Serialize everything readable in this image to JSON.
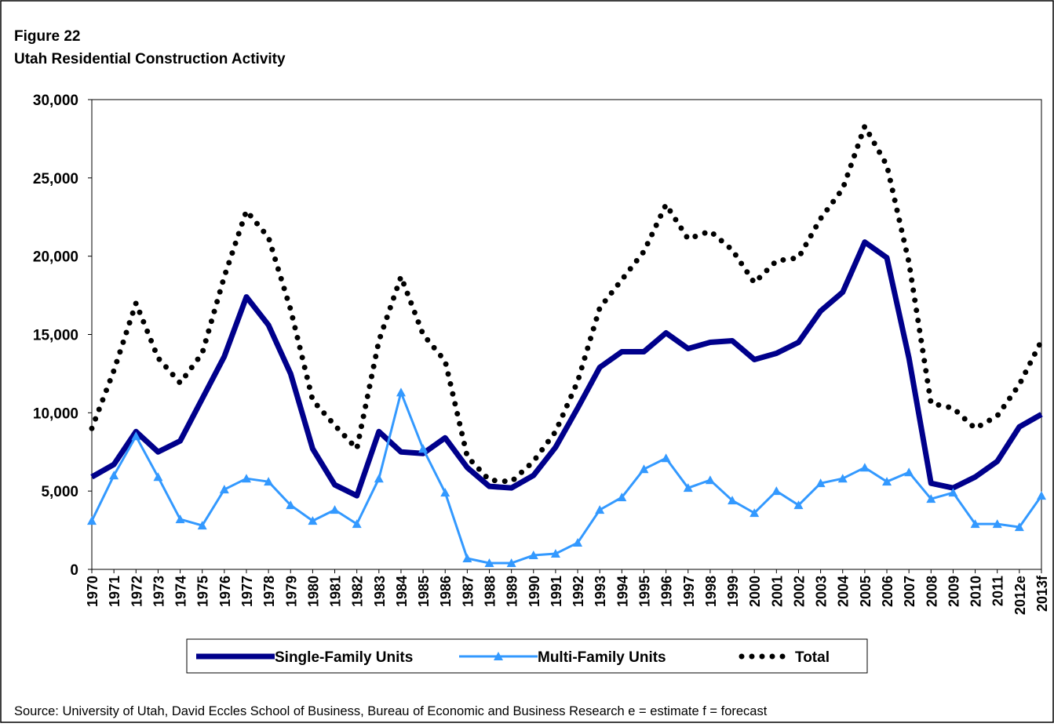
{
  "chart_data": {
    "type": "line",
    "title": "Figure 22",
    "subtitle": "Utah Residential Construction Activity",
    "source": "Source: University of Utah, David Eccles School of Business, Bureau of Economic and Business Research   e = estimate  f = forecast",
    "categories": [
      "1970",
      "1971",
      "1972",
      "1973",
      "1974",
      "1975",
      "1976",
      "1977",
      "1978",
      "1979",
      "1980",
      "1981",
      "1982",
      "1983",
      "1984",
      "1985",
      "1986",
      "1987",
      "1988",
      "1989",
      "1990",
      "1991",
      "1992",
      "1993",
      "1994",
      "1995",
      "1996",
      "1997",
      "1998",
      "1999",
      "2000",
      "2001",
      "2002",
      "2003",
      "2004",
      "2005",
      "2006",
      "2007",
      "2008",
      "2009",
      "2010",
      "2011",
      "2012e",
      "2013f"
    ],
    "series": [
      {
        "name": "Single-Family Units",
        "color": "#00008b",
        "style": "solid",
        "values": [
          5900,
          6700,
          8800,
          7500,
          8200,
          10900,
          13600,
          17400,
          15600,
          12500,
          7700,
          5400,
          4700,
          8800,
          7500,
          7400,
          8400,
          6500,
          5300,
          5200,
          6000,
          7800,
          10300,
          12900,
          13900,
          13900,
          15100,
          14100,
          14500,
          14600,
          13400,
          13800,
          14500,
          16500,
          17700,
          20900,
          19900,
          13500,
          5500,
          5200,
          5900,
          6900,
          9100,
          9900
        ]
      },
      {
        "name": "Multi-Family Units",
        "color": "#3399ff",
        "style": "triangle",
        "values": [
          3100,
          6000,
          8500,
          5900,
          3200,
          2800,
          5100,
          5800,
          5600,
          4100,
          3100,
          3800,
          2900,
          5800,
          11300,
          7700,
          4900,
          700,
          400,
          400,
          900,
          1000,
          1700,
          3800,
          4600,
          6400,
          7100,
          5200,
          5700,
          4400,
          3600,
          5000,
          4100,
          5500,
          5800,
          6500,
          5600,
          6200,
          4500,
          4900,
          2900,
          2900,
          2700,
          4700
        ]
      },
      {
        "name": "Total",
        "color": "#000000",
        "style": "dotted",
        "values": [
          9000,
          12700,
          17000,
          13500,
          11900,
          13800,
          18700,
          22900,
          21200,
          16600,
          10800,
          9200,
          7700,
          14600,
          18700,
          15000,
          13300,
          7200,
          5700,
          5600,
          6900,
          8800,
          12000,
          16700,
          18500,
          20300,
          23300,
          21100,
          21600,
          20400,
          18300,
          19700,
          19900,
          22400,
          24300,
          28300,
          25800,
          19600,
          10600,
          10300,
          9000,
          9800,
          11800,
          14600
        ]
      }
    ],
    "ylim": [
      0,
      30000
    ],
    "yticks": [
      0,
      {
        "value": 5000,
        "label": "5,000"
      },
      {
        "value": 10000,
        "label": "10,000"
      },
      {
        "value": 15000,
        "label": "15,000"
      },
      {
        "value": 20000,
        "label": "20,000"
      },
      {
        "value": 25000,
        "label": "25,000"
      },
      {
        "value": 30000,
        "label": "30,000"
      }
    ],
    "grid": false,
    "legend": "bottom"
  }
}
